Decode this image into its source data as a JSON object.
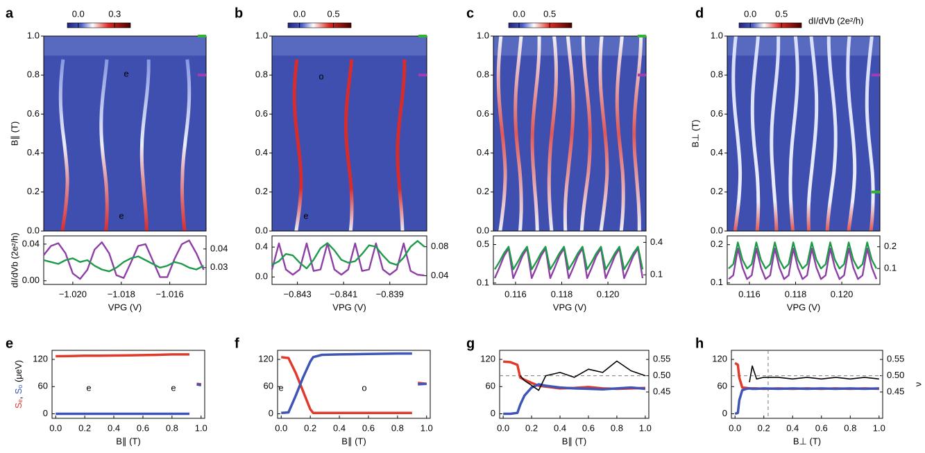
{
  "chart_data": [
    {
      "type": "heatmap",
      "panel": "a",
      "ylim": [
        0,
        1.0
      ],
      "yticks": [
        {
          "value": 0,
          "label": "0.0"
        },
        0.2,
        0.4,
        0.6,
        0.8,
        {
          "value": 1.0,
          "label": "1.0"
        }
      ],
      "ylabel": "B∥ (T)",
      "colorbar": {
        "lim": [
          -0.09,
          0.43
        ],
        "ticks": [
          {
            "value": 0,
            "label": "0.0"
          },
          0.3
        ]
      },
      "annotations": [
        "e",
        "e"
      ],
      "markers": [
        {
          "y": 1.0,
          "color": "#2fb52f"
        },
        {
          "y": 0.8,
          "color": "#a23cb5"
        }
      ]
    },
    {
      "type": "line",
      "xlim": [
        -1.0212,
        -1.0145
      ],
      "xticks": [
        {
          "value": -1.02,
          "label": "−1.020"
        },
        {
          "value": -1.018,
          "label": "−1.018"
        },
        {
          "value": -1.016,
          "label": "−1.016"
        }
      ],
      "ylim": [
        -0.004,
        0.049
      ],
      "yticks": [
        {
          "value": 0,
          "label": "0.00"
        },
        0.04
      ],
      "y2lim": [
        0.021,
        0.047
      ],
      "y2ticks": [
        0.03,
        0.04
      ],
      "xlabel": "VPG (V)",
      "ylabel": "dI/dVb (2e²/h)",
      "x": [
        -1.0212,
        -1.0209,
        -1.0206,
        -1.0203,
        -1.02,
        -1.0197,
        -1.0194,
        -1.0191,
        -1.0188,
        -1.0185,
        -1.0182,
        -1.0179,
        -1.0176,
        -1.0173,
        -1.017,
        -1.0167,
        -1.0164,
        -1.0161,
        -1.0158,
        -1.0155,
        -1.0152,
        -1.0149,
        -1.0146
      ],
      "series": [
        {
          "color": "#8e3fa6",
          "values": [
            0.028,
            0.038,
            0.041,
            0.03,
            0.008,
            0.002,
            0.012,
            0.034,
            0.042,
            0.03,
            0.006,
            0.003,
            0.02,
            0.038,
            0.04,
            0.022,
            0.004,
            0.004,
            0.024,
            0.04,
            0.044,
            0.03,
            0.012
          ]
        },
        {
          "color": "#1e9a4a",
          "axis": "y2",
          "values": [
            0.034,
            0.033,
            0.032,
            0.034,
            0.035,
            0.033,
            0.034,
            0.031,
            0.029,
            0.028,
            0.03,
            0.033,
            0.035,
            0.036,
            0.034,
            0.032,
            0.03,
            0.031,
            0.033,
            0.032,
            0.03,
            0.029,
            0.031
          ]
        }
      ]
    },
    {
      "type": "heatmap",
      "panel": "b",
      "ylim": [
        0,
        1.0
      ],
      "yticks": [
        {
          "value": 0,
          "label": "0.0"
        },
        0.2,
        0.4,
        0.6,
        0.8,
        {
          "value": 1.0,
          "label": "1.0"
        }
      ],
      "colorbar": {
        "lim": [
          -0.17,
          0.76
        ],
        "ticks": [
          {
            "value": 0,
            "label": "0.0"
          },
          0.5
        ]
      },
      "annotations": [
        "o",
        "e"
      ],
      "markers": [
        {
          "y": 1.0,
          "color": "#2fb52f"
        },
        {
          "y": 0.8,
          "color": "#a23cb5"
        }
      ]
    },
    {
      "type": "line",
      "xlim": [
        -0.8441,
        -0.8374
      ],
      "xticks": [
        {
          "value": -0.843,
          "label": "−0.843"
        },
        {
          "value": -0.841,
          "label": "−0.841"
        },
        {
          "value": -0.839,
          "label": "−0.839"
        }
      ],
      "ylim": [
        -0.1,
        0.55
      ],
      "yticks": [
        {
          "value": 0,
          "label": "0.0"
        },
        0.4
      ],
      "y2lim": [
        0.028,
        0.095
      ],
      "y2ticks": [
        0.04,
        0.08
      ],
      "xlabel": "VPG (V)",
      "x": [
        -0.8441,
        -0.8438,
        -0.8435,
        -0.8432,
        -0.8429,
        -0.8426,
        -0.8423,
        -0.842,
        -0.8417,
        -0.8414,
        -0.8411,
        -0.8408,
        -0.8405,
        -0.8402,
        -0.8399,
        -0.8396,
        -0.8393,
        -0.839,
        -0.8387,
        -0.8384,
        -0.8381,
        -0.8378,
        -0.8375
      ],
      "series": [
        {
          "color": "#8e3fa6",
          "values": [
            0.1,
            0.45,
            0.1,
            0.03,
            0.1,
            0.45,
            0.08,
            0.1,
            0.45,
            0.1,
            0.03,
            0.1,
            0.45,
            0.08,
            0.1,
            0.45,
            0.1,
            0.03,
            0.1,
            0.45,
            0.08,
            0.03,
            0.02
          ]
        },
        {
          "color": "#1e9a4a",
          "axis": "y2",
          "values": [
            0.055,
            0.06,
            0.07,
            0.068,
            0.058,
            0.05,
            0.062,
            0.078,
            0.085,
            0.075,
            0.062,
            0.058,
            0.06,
            0.07,
            0.082,
            0.08,
            0.068,
            0.058,
            0.055,
            0.065,
            0.08,
            0.088,
            0.08
          ]
        }
      ]
    },
    {
      "type": "heatmap",
      "panel": "c",
      "ylim": [
        0,
        1.0
      ],
      "yticks": [
        {
          "value": 0,
          "label": "0.0"
        },
        0.2,
        0.4,
        0.6,
        0.8,
        {
          "value": 1.0,
          "label": "1.0"
        }
      ],
      "colorbar": {
        "lim": [
          -0.17,
          0.86
        ],
        "ticks": [
          {
            "value": 0,
            "label": "0.0"
          },
          0.5
        ]
      },
      "markers": [
        {
          "y": 1.0,
          "color": "#2fb52f"
        },
        {
          "y": 0.8,
          "color": "#a23cb5"
        }
      ]
    },
    {
      "type": "line",
      "xlim": [
        0.11504,
        0.12165
      ],
      "xticks": [
        0.116,
        0.118,
        {
          "value": 0.12,
          "label": "0.120"
        }
      ],
      "ylim": [
        0.085,
        0.59
      ],
      "yticks": [
        0.1,
        0.5
      ],
      "y2lim": [
        0.011,
        0.46
      ],
      "y2ticks": [
        0.1,
        0.4
      ],
      "xlabel": "VPG (V)",
      "x": [
        0.1151,
        0.1153,
        0.1155,
        0.1157,
        0.1159,
        0.1161,
        0.1163,
        0.1165,
        0.1167,
        0.1169,
        0.1171,
        0.1173,
        0.1175,
        0.1177,
        0.1179,
        0.1181,
        0.1183,
        0.1185,
        0.1187,
        0.1189,
        0.1191,
        0.1193,
        0.1195,
        0.1197,
        0.1199,
        0.1201,
        0.1203,
        0.1205,
        0.1207,
        0.1209,
        0.1211,
        0.1213,
        0.1215
      ],
      "series": [
        {
          "color": "#8e3fa6",
          "values": [
            0.15,
            0.26,
            0.38,
            0.46,
            0.15,
            0.26,
            0.38,
            0.46,
            0.15,
            0.26,
            0.38,
            0.46,
            0.15,
            0.26,
            0.38,
            0.46,
            0.15,
            0.26,
            0.38,
            0.46,
            0.15,
            0.26,
            0.38,
            0.46,
            0.15,
            0.26,
            0.38,
            0.46,
            0.15,
            0.26,
            0.38,
            0.46,
            0.15
          ]
        },
        {
          "color": "#1e9a4a",
          "axis": "y2",
          "values": [
            0.15,
            0.22,
            0.3,
            0.36,
            0.15,
            0.22,
            0.3,
            0.36,
            0.15,
            0.22,
            0.3,
            0.36,
            0.15,
            0.22,
            0.3,
            0.36,
            0.15,
            0.22,
            0.3,
            0.36,
            0.15,
            0.22,
            0.3,
            0.36,
            0.15,
            0.22,
            0.3,
            0.36,
            0.15,
            0.22,
            0.3,
            0.36,
            0.15
          ]
        }
      ]
    },
    {
      "type": "heatmap",
      "panel": "d",
      "ylim": [
        0,
        1.0
      ],
      "yticks": [
        {
          "value": 0,
          "label": "0.0"
        },
        0.2,
        0.4,
        0.6,
        0.8,
        {
          "value": 1.0,
          "label": "1.0"
        }
      ],
      "ylabel": "B⊥ (T)",
      "colorbar": {
        "lim": [
          -0.18,
          0.82
        ],
        "ticks": [
          {
            "value": 0,
            "label": "0.0"
          },
          0.5
        ],
        "label": "dI/dVb (2e²/h)"
      },
      "markers": [
        {
          "y": 0.8,
          "color": "#a23cb5"
        },
        {
          "y": 0.2,
          "color": "#2fb52f"
        }
      ]
    },
    {
      "type": "line",
      "xlim": [
        0.11504,
        0.12165
      ],
      "xticks": [
        0.116,
        0.118,
        {
          "value": 0.12,
          "label": "0.120"
        }
      ],
      "ylim": [
        0.096,
        0.223
      ],
      "yticks": [
        0.1,
        0.2
      ],
      "y2lim": [
        0.027,
        0.25
      ],
      "y2ticks": [
        0.1,
        0.2
      ],
      "xlabel": "VPG (V)",
      "x": [
        0.1151,
        0.1153,
        0.1155,
        0.1157,
        0.1159,
        0.1161,
        0.1163,
        0.1165,
        0.1167,
        0.1169,
        0.1171,
        0.1173,
        0.1175,
        0.1177,
        0.1179,
        0.1181,
        0.1183,
        0.1185,
        0.1187,
        0.1189,
        0.1191,
        0.1193,
        0.1195,
        0.1197,
        0.1199,
        0.1201,
        0.1203,
        0.1205,
        0.1207,
        0.1209,
        0.1211,
        0.1213,
        0.1215
      ],
      "series": [
        {
          "color": "#8e3fa6",
          "values": [
            0.11,
            0.12,
            0.19,
            0.14,
            0.11,
            0.12,
            0.19,
            0.14,
            0.11,
            0.12,
            0.19,
            0.14,
            0.11,
            0.12,
            0.19,
            0.14,
            0.11,
            0.12,
            0.19,
            0.14,
            0.11,
            0.12,
            0.19,
            0.14,
            0.11,
            0.12,
            0.19,
            0.14,
            0.11,
            0.12,
            0.19,
            0.14,
            0.11
          ]
        },
        {
          "color": "#1e9a4a",
          "axis": "y2",
          "values": [
            0.1,
            0.12,
            0.22,
            0.14,
            0.1,
            0.12,
            0.22,
            0.14,
            0.1,
            0.12,
            0.22,
            0.14,
            0.1,
            0.12,
            0.22,
            0.14,
            0.1,
            0.12,
            0.22,
            0.14,
            0.1,
            0.12,
            0.22,
            0.14,
            0.1,
            0.12,
            0.22,
            0.14,
            0.1,
            0.12,
            0.22,
            0.14,
            0.1
          ]
        }
      ]
    },
    {
      "type": "line",
      "panel": "e",
      "xlim": [
        -0.025,
        1.025
      ],
      "xticks": [
        {
          "value": 0,
          "label": "0.0"
        },
        0.2,
        0.4,
        0.6,
        0.8,
        {
          "value": 1.0,
          "label": "1.0"
        }
      ],
      "ylim": [
        -10,
        140
      ],
      "yticks": [
        0,
        60,
        120
      ],
      "xlabel": "B∥ (T)",
      "ylabel": [
        "Sₑ",
        ", ",
        "Sₒ",
        " (μeV)"
      ],
      "annotations": [
        "e",
        "e"
      ],
      "x": [
        0,
        0.1,
        0.2,
        0.3,
        0.4,
        0.5,
        0.6,
        0.7,
        0.8,
        0.9,
        0.92,
        0.95,
        0.97,
        1.0
      ],
      "series": [
        {
          "color": "#e03a2c",
          "values": [
            127,
            127.5,
            128,
            128,
            128.5,
            129,
            129.5,
            130,
            131,
            131,
            131,
            null,
            66,
            65
          ]
        },
        {
          "color": "#3f55b5",
          "values": [
            0,
            0,
            0,
            0,
            0,
            0,
            0,
            0,
            0,
            0,
            0,
            null,
            65,
            63
          ]
        }
      ]
    },
    {
      "type": "line",
      "panel": "f",
      "xlim": [
        -0.025,
        1.025
      ],
      "xticks": [
        {
          "value": 0,
          "label": "0.0"
        },
        0.2,
        0.4,
        0.6,
        0.8,
        {
          "value": 1.0,
          "label": "1.0"
        }
      ],
      "ylim": [
        -10,
        140
      ],
      "yticks": [
        0,
        60,
        120
      ],
      "xlabel": "B∥ (T)",
      "annotations": [
        "e",
        "o"
      ],
      "x": [
        0,
        0.05,
        0.1,
        0.15,
        0.2,
        0.22,
        0.28,
        0.4,
        0.6,
        0.8,
        0.9,
        0.92,
        0.94,
        1.0
      ],
      "series": [
        {
          "color": "#e03a2c",
          "values": [
            125,
            123,
            90,
            50,
            10,
            2,
            2,
            2,
            2,
            2,
            2,
            null,
            68,
            66
          ]
        },
        {
          "color": "#3f55b5",
          "values": [
            2,
            3,
            40,
            80,
            115,
            125,
            130,
            131,
            132,
            133,
            133,
            null,
            65,
            66
          ]
        }
      ]
    },
    {
      "type": "line",
      "panel": "g",
      "xlim": [
        -0.025,
        1.025
      ],
      "xticks": [
        {
          "value": 0,
          "label": "0.0"
        },
        0.2,
        0.4,
        0.6,
        0.8,
        {
          "value": 1.0,
          "label": "1.0"
        }
      ],
      "ylim": [
        -10,
        140
      ],
      "yticks": [
        0,
        60,
        120
      ],
      "y2lim": [
        0.369,
        0.578
      ],
      "y2ticks": [
        0.45,
        {
          "value": 0.5,
          "label": "0.50"
        },
        0.55
      ],
      "xlabel": "B∥ (T)",
      "hline_y2": 0.5,
      "x": [
        0,
        0.05,
        0.1,
        0.12,
        0.15,
        0.2,
        0.25,
        0.3,
        0.4,
        0.5,
        0.6,
        0.7,
        0.8,
        0.9,
        1.0
      ],
      "series": [
        {
          "color": "#e03a2c",
          "values": [
            115,
            114,
            108,
            80,
            75,
            68,
            62,
            60,
            56,
            57,
            59,
            56,
            55,
            56,
            57
          ]
        },
        {
          "color": "#3f55b5",
          "values": [
            0,
            0,
            2,
            20,
            40,
            58,
            65,
            62,
            58,
            56,
            55,
            54,
            56,
            58,
            55
          ]
        },
        {
          "color": "#000000",
          "axis": "y2",
          "values": [
            null,
            null,
            null,
            0.5,
            0.485,
            0.47,
            0.455,
            0.5,
            0.51,
            0.495,
            0.52,
            0.51,
            0.545,
            0.515,
            0.5
          ]
        }
      ]
    },
    {
      "type": "line",
      "panel": "h",
      "xlim": [
        -0.025,
        1.025
      ],
      "xticks": [
        {
          "value": 0,
          "label": "0.0"
        },
        0.2,
        0.4,
        0.6,
        0.8,
        {
          "value": 1.0,
          "label": "1.0"
        }
      ],
      "ylim": [
        -10,
        140
      ],
      "yticks": [
        0,
        60,
        120
      ],
      "y2lim": [
        0.369,
        0.578
      ],
      "y2ticks": [
        0.45,
        {
          "value": 0.5,
          "label": "0.50"
        },
        0.55
      ],
      "xlabel": "B⊥ (T)",
      "y2label": "ν",
      "hline_y2": 0.5,
      "vline": 0.23,
      "x": [
        0,
        0.02,
        0.03,
        0.05,
        0.08,
        0.1,
        0.12,
        0.15,
        0.2,
        0.3,
        0.4,
        0.5,
        0.6,
        0.7,
        0.8,
        0.9,
        1.0
      ],
      "series": [
        {
          "color": "#e03a2c",
          "values": [
            112,
            108,
            80,
            58,
            57,
            56,
            56,
            56,
            55,
            56,
            55,
            56,
            55,
            56,
            55,
            56,
            55
          ]
        },
        {
          "color": "#3f55b5",
          "values": [
            0,
            2,
            30,
            52,
            55,
            56,
            55,
            55,
            56,
            55,
            56,
            55,
            56,
            55,
            56,
            55,
            56
          ]
        },
        {
          "color": "#000000",
          "axis": "y2",
          "values": [
            null,
            null,
            null,
            null,
            null,
            0.48,
            0.53,
            0.49,
            0.495,
            0.495,
            0.49,
            0.495,
            0.49,
            0.495,
            0.49,
            0.495,
            0.49
          ]
        }
      ]
    }
  ]
}
